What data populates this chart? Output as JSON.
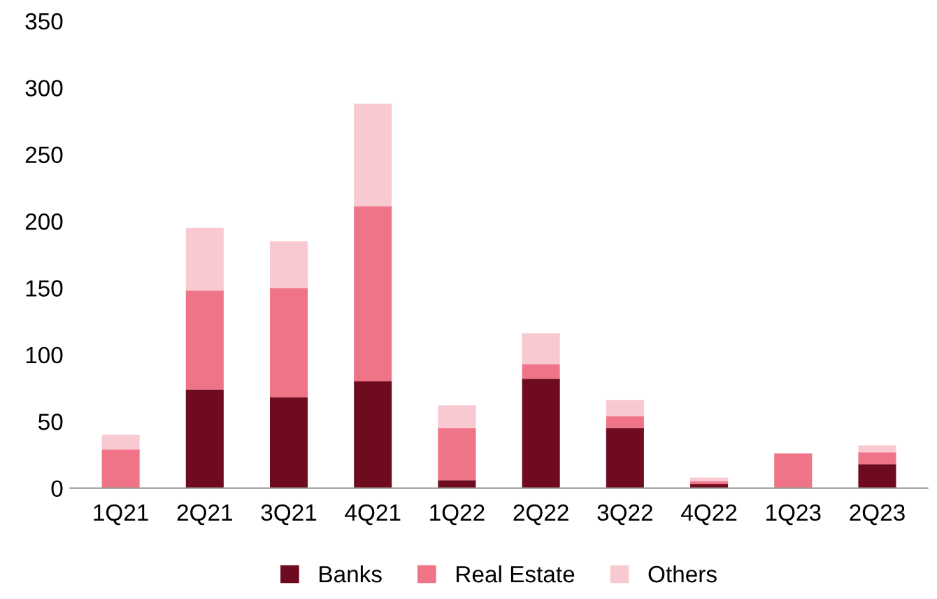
{
  "chart_data": {
    "type": "bar",
    "stacked": true,
    "categories": [
      "1Q21",
      "2Q21",
      "3Q21",
      "4Q21",
      "1Q22",
      "2Q22",
      "3Q22",
      "4Q22",
      "1Q23",
      "2Q23"
    ],
    "series": [
      {
        "name": "Banks",
        "color": "#6e0b1e",
        "values": [
          0,
          74,
          68,
          80,
          6,
          82,
          45,
          3,
          0,
          18
        ]
      },
      {
        "name": "Real Estate",
        "color": "#f07487",
        "values": [
          29,
          74,
          82,
          131,
          39,
          11,
          9,
          2,
          26,
          9
        ]
      },
      {
        "name": "Others",
        "color": "#f9c9d2",
        "values": [
          11,
          47,
          35,
          77,
          17,
          23,
          12,
          3,
          0,
          5
        ]
      }
    ],
    "ylim": [
      0,
      350
    ],
    "yticks": [
      0,
      50,
      100,
      150,
      200,
      250,
      300,
      350
    ],
    "grid": false,
    "legend": "bottom"
  }
}
